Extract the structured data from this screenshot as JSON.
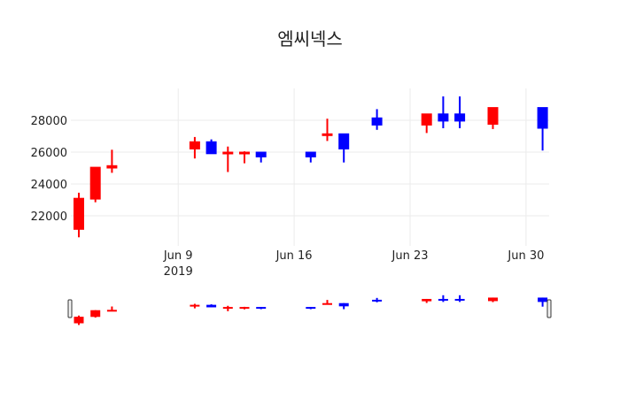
{
  "chart_data": {
    "type": "candlestick",
    "title": "엠씨넥스",
    "xlabel": "",
    "ylabel": "",
    "ylim": [
      20400,
      29700
    ],
    "yticks": [
      22000,
      24000,
      26000,
      28000
    ],
    "ytick_labels": [
      "22000",
      "24000",
      "26000",
      "28000"
    ],
    "xticks": [
      {
        "date": "2019-06-09",
        "label": "Jun 9",
        "sublabel": "2019"
      },
      {
        "date": "2019-06-16",
        "label": "Jun 16",
        "sublabel": ""
      },
      {
        "date": "2019-06-23",
        "label": "Jun 23",
        "sublabel": ""
      },
      {
        "date": "2019-06-30",
        "label": "Jun 30",
        "sublabel": ""
      }
    ],
    "grid": true,
    "rangeslider": true,
    "increasing_color": "#ff0000",
    "decreasing_color": "#0000ff",
    "x": [
      "2019-06-03",
      "2019-06-04",
      "2019-06-05",
      "2019-06-10",
      "2019-06-11",
      "2019-06-12",
      "2019-06-13",
      "2019-06-14",
      "2019-06-17",
      "2019-06-18",
      "2019-06-19",
      "2019-06-21",
      "2019-06-24",
      "2019-06-25",
      "2019-06-26",
      "2019-06-28",
      "2019-07-01"
    ],
    "open": [
      21150,
      23050,
      25000,
      26200,
      26650,
      25900,
      25900,
      26000,
      26000,
      27050,
      27150,
      28150,
      27700,
      28400,
      28400,
      27750,
      28800
    ],
    "high": [
      23450,
      25050,
      26150,
      26950,
      26800,
      26350,
      26050,
      26000,
      26000,
      28100,
      27150,
      28700,
      28400,
      29500,
      29500,
      28800,
      28800
    ],
    "low": [
      20650,
      22850,
      24700,
      25600,
      25900,
      24750,
      25300,
      25350,
      25350,
      26700,
      25350,
      27400,
      27200,
      27500,
      27500,
      27450,
      26100
    ],
    "close": [
      23100,
      25050,
      25150,
      26650,
      25900,
      26000,
      26000,
      25700,
      25700,
      27150,
      26200,
      27700,
      28400,
      27950,
      27950,
      28800,
      27500
    ]
  }
}
